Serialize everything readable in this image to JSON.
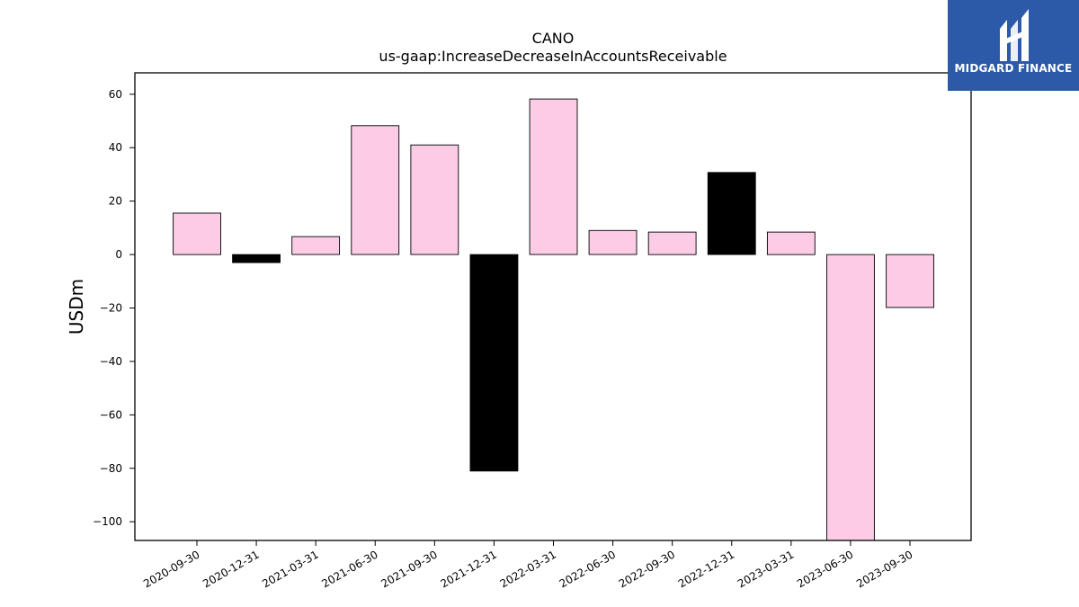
{
  "brand": {
    "name": "MIDGARD FINANCE",
    "background": "#2c5aa8"
  },
  "chart_data": {
    "type": "bar",
    "title": "CANO",
    "subtitle": "us-gaap:IncreaseDecreaseInAccountsReceivable",
    "xlabel": "",
    "ylabel": "USDm",
    "categories": [
      "2020-09-30",
      "2020-12-31",
      "2021-03-31",
      "2021-06-30",
      "2021-09-30",
      "2021-12-31",
      "2022-03-31",
      "2022-06-30",
      "2022-09-30",
      "2022-12-31",
      "2023-03-31",
      "2023-06-30",
      "2023-09-30"
    ],
    "values": [
      15.5,
      -3.0,
      6.7,
      48.2,
      41.0,
      -81.0,
      58.2,
      9.0,
      8.4,
      30.7,
      8.4,
      -107.0,
      -19.8
    ],
    "ylim": [
      -107,
      68
    ],
    "yticks": [
      60,
      40,
      20,
      0,
      -20,
      -40,
      -60,
      -80,
      -100
    ],
    "ytick_labels": [
      "60",
      "40",
      "20",
      "0",
      "−20",
      "−40",
      "−60",
      "−80",
      "−100"
    ],
    "colors": {
      "positive_fill": "#fccce6",
      "highlight_fill": "#000000",
      "edge": "#000000"
    },
    "highlighted": [
      "2020-12-31",
      "2021-12-31",
      "2022-12-31"
    ],
    "grid": false,
    "legend": "none"
  }
}
